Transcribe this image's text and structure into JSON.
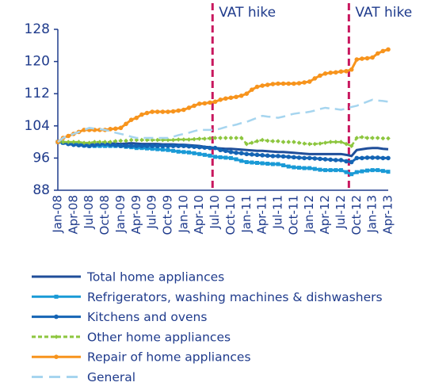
{
  "chart_data": {
    "type": "line",
    "categories": [
      "Jan-08",
      null,
      null,
      "Apr-08",
      null,
      null,
      "Jul-08",
      null,
      null,
      "Oct-08",
      null,
      null,
      "Jan-09",
      null,
      null,
      "Apr-09",
      null,
      null,
      "Jul-09",
      null,
      null,
      "Oct-09",
      null,
      null,
      "Jan-10",
      null,
      null,
      "Apr-10",
      null,
      null,
      "Jul-10",
      null,
      null,
      "Oct-10",
      null,
      null,
      "Jan-11",
      null,
      null,
      "Apr-11",
      null,
      null,
      "Jul-11",
      null,
      null,
      "Oct-11",
      null,
      null,
      "Jan-12",
      null,
      null,
      "Apr-12",
      null,
      null,
      "Jul-12",
      null,
      null,
      "Oct-12",
      null,
      null,
      "Jan-13",
      null,
      null,
      "Apr-13"
    ],
    "ylim": [
      88,
      128
    ],
    "yticks": [
      88,
      96,
      104,
      112,
      120,
      128
    ],
    "annotations": [
      {
        "label": "VAT hike",
        "x": 29.5,
        "color": "#c8175e"
      },
      {
        "label": "VAT hike",
        "x": 55.5,
        "color": "#c8175e"
      }
    ],
    "series": [
      {
        "name": "Total home appliances",
        "color": "#1f4e9a",
        "dash": false,
        "marker": "none",
        "values": [
          100,
          100,
          99.8,
          99.6,
          99.5,
          99.5,
          99.4,
          99.4,
          99.5,
          99.5,
          99.6,
          99.6,
          99.5,
          99.6,
          99.7,
          99.6,
          99.5,
          99.5,
          99.5,
          99.5,
          99.4,
          99.4,
          99.4,
          99.3,
          99.3,
          99.2,
          99.1,
          99,
          98.8,
          98.7,
          98.5,
          98.4,
          98.3,
          98.3,
          98.2,
          98.1,
          98,
          97.9,
          97.8,
          97.8,
          97.7,
          97.6,
          97.5,
          97.5,
          97.4,
          97.3,
          97.2,
          97.1,
          97,
          97,
          97,
          97,
          97,
          97,
          97,
          96.8,
          96.5,
          98,
          98.2,
          98.4,
          98.5,
          98.5,
          98.3,
          98.2
        ]
      },
      {
        "name": "Refrigerators, washing machines & dishwashers",
        "color": "#1a9ad6",
        "dash": false,
        "marker": "square",
        "values": [
          100,
          99.8,
          99.6,
          99.5,
          99.3,
          99.1,
          99,
          99,
          99,
          99,
          99,
          99,
          99,
          98.8,
          98.7,
          98.5,
          98.5,
          98.4,
          98.3,
          98.2,
          98.1,
          98,
          97.8,
          97.6,
          97.5,
          97.4,
          97.2,
          97,
          96.8,
          96.6,
          96.3,
          96.2,
          96.1,
          96,
          95.7,
          95.3,
          95,
          94.9,
          94.8,
          94.7,
          94.6,
          94.5,
          94.5,
          94.2,
          93.9,
          93.7,
          93.6,
          93.5,
          93.5,
          93.3,
          93.1,
          93,
          93,
          93,
          93,
          92.5,
          92,
          92.5,
          92.7,
          92.9,
          93,
          93,
          92.8,
          92.6
        ]
      },
      {
        "name": "Kitchens and ovens",
        "color": "#1464b4",
        "dash": false,
        "marker": "circle",
        "values": [
          100,
          99.8,
          99.5,
          99.3,
          99.2,
          99.1,
          99,
          99.2,
          99.4,
          99.5,
          99.3,
          99.2,
          99,
          99,
          99,
          99,
          99,
          99,
          99,
          99,
          99,
          99,
          99,
          99,
          99,
          98.9,
          98.8,
          98.7,
          98.6,
          98.5,
          98.5,
          98,
          97.8,
          97.5,
          97.3,
          97.2,
          97,
          96.9,
          96.8,
          96.7,
          96.6,
          96.5,
          96.5,
          96.4,
          96.3,
          96.2,
          96.1,
          96,
          96,
          95.9,
          95.8,
          95.7,
          95.6,
          95.5,
          95.5,
          95.2,
          95,
          96,
          96,
          96.1,
          96.1,
          96.1,
          96,
          96
        ]
      },
      {
        "name": "Other home appliances",
        "color": "#8dc63f",
        "dash": true,
        "marker": "diamond",
        "values": [
          100,
          100,
          100,
          100,
          100,
          99.8,
          99.8,
          100,
          100,
          100,
          100,
          100.2,
          100.3,
          100.3,
          100.5,
          100.5,
          100.5,
          100.5,
          100.5,
          100.5,
          100.5,
          100.5,
          100.5,
          100.6,
          100.6,
          100.6,
          100.7,
          100.8,
          100.8,
          100.9,
          101,
          101,
          101,
          101,
          101,
          101,
          99.5,
          99.8,
          100.2,
          100.5,
          100.3,
          100.2,
          100.2,
          100,
          100,
          100,
          99.8,
          99.6,
          99.5,
          99.5,
          99.6,
          99.8,
          100,
          100,
          100,
          99.5,
          99,
          101,
          101.2,
          101,
          101,
          101,
          100.9,
          100.9
        ]
      },
      {
        "name": "Repair of home appliances",
        "color": "#f7941d",
        "dash": false,
        "marker": "circle",
        "values": [
          100,
          101,
          101.5,
          102,
          102.5,
          103,
          103,
          103,
          103,
          103,
          103.2,
          103.3,
          103.5,
          104.5,
          105.5,
          106,
          106.8,
          107.2,
          107.5,
          107.5,
          107.5,
          107.5,
          107.6,
          107.8,
          108,
          108.5,
          109,
          109.5,
          109.6,
          109.8,
          110,
          110.5,
          110.8,
          111,
          111.2,
          111.5,
          112,
          113,
          113.7,
          114,
          114.2,
          114.4,
          114.5,
          114.5,
          114.5,
          114.5,
          114.6,
          114.8,
          115,
          115.8,
          116.5,
          117,
          117.2,
          117.3,
          117.5,
          117.6,
          118,
          120.5,
          120.7,
          120.8,
          121,
          122,
          122.6,
          123
        ]
      },
      {
        "name": "General",
        "color": "#a6d5ef",
        "dash": true,
        "marker": "none",
        "values": [
          100,
          101,
          101.5,
          102,
          102.5,
          103,
          103.5,
          103.3,
          103.2,
          103,
          102.7,
          102.3,
          102,
          101.7,
          101.3,
          101,
          101,
          101,
          101,
          101,
          101,
          101,
          101.3,
          101.7,
          102,
          102.3,
          102.7,
          103,
          103,
          103,
          103,
          103.3,
          103.7,
          104,
          104.3,
          104.7,
          105,
          105.5,
          106,
          106.5,
          106.3,
          106.2,
          106,
          106.3,
          106.7,
          107,
          107.2,
          107.3,
          107.5,
          107.8,
          108.2,
          108.5,
          108.3,
          108.2,
          108,
          108.3,
          108.7,
          109,
          109.5,
          110,
          110.5,
          110.3,
          110.2,
          110
        ]
      }
    ]
  }
}
